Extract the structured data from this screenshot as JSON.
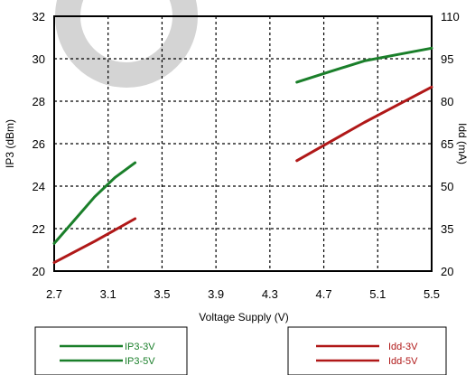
{
  "chart_data": {
    "type": "line",
    "title": "",
    "xlabel": "Voltage Supply (V)",
    "ylabel": "IP3 (dBm)",
    "y2label": "Idd (mA)",
    "xlim": [
      2.7,
      5.5
    ],
    "ylim": [
      20,
      32
    ],
    "y2lim": [
      20,
      110
    ],
    "x_ticks": [
      "2.7",
      "3.1",
      "3.5",
      "3.9",
      "4.3",
      "4.7",
      "5.1",
      "5.5"
    ],
    "y_ticks": [
      "20",
      "22",
      "24",
      "26",
      "28",
      "30",
      "32"
    ],
    "y2_ticks": [
      "20",
      "35",
      "50",
      "65",
      "80",
      "95",
      "110"
    ],
    "grid": true,
    "series": [
      {
        "name": "IP3-3V",
        "axis": "left",
        "color": "#1a7f2a",
        "x": [
          2.7,
          2.85,
          3.0,
          3.15,
          3.3
        ],
        "y": [
          21.3,
          22.4,
          23.5,
          24.4,
          25.1
        ]
      },
      {
        "name": "IP3-5V",
        "axis": "left",
        "color": "#1a7f2a",
        "x": [
          4.5,
          4.75,
          5.0,
          5.25,
          5.5
        ],
        "y": [
          28.9,
          29.4,
          29.9,
          30.2,
          30.5
        ]
      },
      {
        "name": "Idd-3V",
        "axis": "right",
        "color": "#b01818",
        "x": [
          2.7,
          3.0,
          3.3
        ],
        "y": [
          23,
          30.5,
          38.5
        ]
      },
      {
        "name": "Idd-5V",
        "axis": "right",
        "color": "#b01818",
        "x": [
          4.5,
          5.0,
          5.5
        ],
        "y": [
          59,
          72.5,
          85
        ]
      }
    ],
    "legends": [
      {
        "placement": "bottom-left",
        "entries": [
          "IP3-3V",
          "IP3-5V"
        ]
      },
      {
        "placement": "bottom-right",
        "entries": [
          "Idd-3V",
          "Idd-5V"
        ]
      }
    ]
  }
}
